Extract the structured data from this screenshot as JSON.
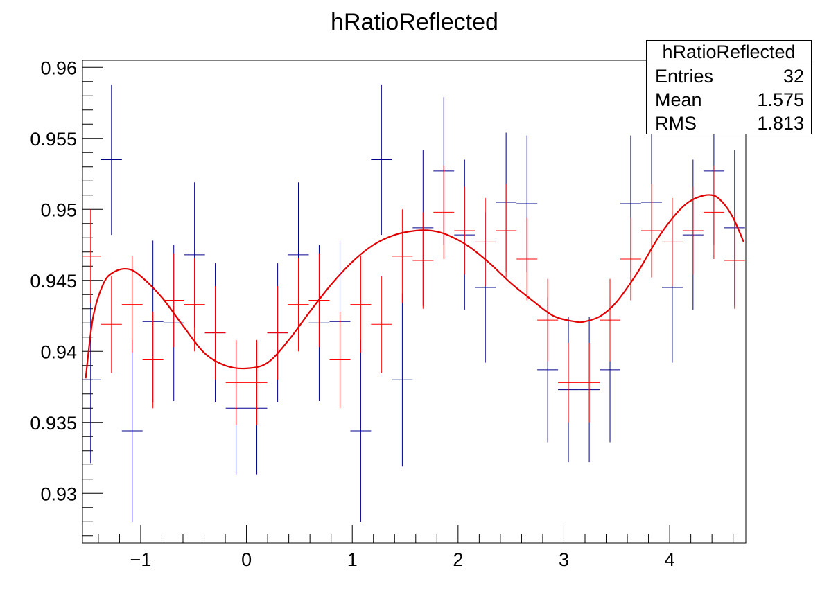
{
  "chart_data": {
    "type": "scatter",
    "title": "hRatioReflected",
    "xlabel": "",
    "ylabel": "",
    "xlim": [
      -1.55,
      4.72
    ],
    "ylim": [
      0.9265,
      0.9605
    ],
    "x_ticks": [
      -1,
      0,
      1,
      2,
      3,
      4
    ],
    "x_tick_labels": [
      "−1",
      "0",
      "1",
      "2",
      "3",
      "4"
    ],
    "y_ticks": [
      0.93,
      0.935,
      0.94,
      0.945,
      0.95,
      0.955,
      0.96
    ],
    "y_tick_labels": [
      "0.93",
      "0.935",
      "0.94",
      "0.945",
      "0.95",
      "0.955",
      "0.96"
    ],
    "grid": false,
    "legend": "none",
    "colors": {
      "series_blue": "#00008b",
      "series_red": "#ff0000",
      "fit": "#e00000"
    },
    "stats": {
      "title": "hRatioReflected",
      "rows": [
        {
          "label": "Entries",
          "value": "32"
        },
        {
          "label": "Mean",
          "value": "1.575"
        },
        {
          "label": "RMS",
          "value": "1.813"
        }
      ]
    },
    "series": [
      {
        "style": "errorbar",
        "color": "#00008b",
        "x": [
          -1.473,
          -1.276,
          -1.08,
          -0.884,
          -0.687,
          -0.491,
          -0.295,
          -0.098,
          0.098,
          0.295,
          0.491,
          0.687,
          0.884,
          1.08,
          1.276,
          1.473,
          1.669,
          1.865,
          2.062,
          2.258,
          2.454,
          2.651,
          2.847,
          3.043,
          3.24,
          3.436,
          3.632,
          3.829,
          4.025,
          4.221,
          4.418,
          4.614
        ],
        "y": [
          0.938,
          0.9535,
          0.9344,
          0.9421,
          0.942,
          0.9468,
          0.9413,
          0.936,
          0.936,
          0.9413,
          0.9468,
          0.942,
          0.9421,
          0.9344,
          0.9535,
          0.938,
          0.9487,
          0.9527,
          0.9482,
          0.9445,
          0.9505,
          0.9504,
          0.9387,
          0.9373,
          0.9373,
          0.9387,
          0.9504,
          0.9505,
          0.9445,
          0.9482,
          0.9527,
          0.9487
        ],
        "yerr": [
          0.0059,
          0.0053,
          0.0064,
          0.0057,
          0.0055,
          0.0051,
          0.0049,
          0.0047,
          0.0047,
          0.0049,
          0.0051,
          0.0055,
          0.0057,
          0.0064,
          0.0053,
          0.0061,
          0.0055,
          0.0052,
          0.0053,
          0.0053,
          0.0049,
          0.0048,
          0.0051,
          0.0051,
          0.0051,
          0.0051,
          0.0048,
          0.0049,
          0.0053,
          0.0053,
          0.0052,
          0.0055
        ]
      },
      {
        "style": "errorbar",
        "color": "#ff0000",
        "x": [
          -1.473,
          -1.276,
          -1.08,
          -0.884,
          -0.687,
          -0.491,
          -0.295,
          -0.098,
          0.098,
          0.295,
          0.491,
          0.687,
          0.884,
          1.08,
          1.276,
          1.473,
          1.669,
          1.865,
          2.062,
          2.258,
          2.454,
          2.651,
          2.847,
          3.043,
          3.24,
          3.436,
          3.632,
          3.829,
          4.025,
          4.221,
          4.418,
          4.614
        ],
        "y": [
          0.9467,
          0.9419,
          0.9433,
          0.9394,
          0.9436,
          0.9433,
          0.9413,
          0.9378,
          0.9378,
          0.9413,
          0.9433,
          0.9436,
          0.9394,
          0.9433,
          0.9419,
          0.9467,
          0.9464,
          0.9498,
          0.9485,
          0.9477,
          0.9485,
          0.9465,
          0.9422,
          0.9378,
          0.9378,
          0.9422,
          0.9465,
          0.9485,
          0.9477,
          0.9485,
          0.9498,
          0.9464
        ],
        "yerr": [
          0.0033,
          0.0034,
          0.0034,
          0.0034,
          0.0033,
          0.0033,
          0.0033,
          0.003,
          0.003,
          0.0033,
          0.0033,
          0.0033,
          0.0034,
          0.0034,
          0.0034,
          0.0033,
          0.0034,
          0.0033,
          0.0031,
          0.0031,
          0.0033,
          0.0029,
          0.0029,
          0.0028,
          0.0028,
          0.0029,
          0.0029,
          0.0033,
          0.0031,
          0.0031,
          0.0033,
          0.0034
        ]
      },
      {
        "style": "line",
        "color": "#e00000",
        "x": [
          -1.52,
          -1.45,
          -1.35,
          -1.25,
          -1.12,
          -1.0,
          -0.8,
          -0.6,
          -0.4,
          -0.2,
          0.0,
          0.2,
          0.4,
          0.6,
          0.8,
          1.0,
          1.2,
          1.4,
          1.6,
          1.75,
          1.9,
          2.1,
          2.3,
          2.5,
          2.7,
          2.9,
          3.1,
          3.2,
          3.35,
          3.5,
          3.7,
          3.9,
          4.1,
          4.25,
          4.4,
          4.5,
          4.6,
          4.7
        ],
        "y": [
          0.9381,
          0.9424,
          0.9448,
          0.9456,
          0.9458,
          0.9453,
          0.9438,
          0.9418,
          0.9399,
          0.939,
          0.9388,
          0.9392,
          0.9408,
          0.9428,
          0.9447,
          0.9463,
          0.9475,
          0.9482,
          0.9485,
          0.9485,
          0.9482,
          0.9474,
          0.9462,
          0.9448,
          0.9436,
          0.9425,
          0.9421,
          0.9421,
          0.9425,
          0.9435,
          0.9456,
          0.9481,
          0.95,
          0.9508,
          0.951,
          0.9505,
          0.9494,
          0.9477
        ]
      }
    ]
  }
}
